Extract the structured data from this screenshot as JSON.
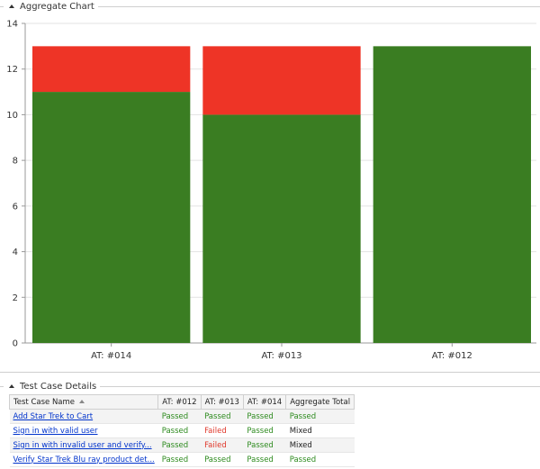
{
  "chart_section": {
    "title": "Aggregate Chart"
  },
  "chart_data": {
    "type": "bar",
    "stacked": true,
    "categories": [
      "AT: #014",
      "AT: #013",
      "AT: #012"
    ],
    "series": [
      {
        "name": "Passed",
        "values": [
          11,
          10,
          13
        ],
        "color": "#3a7d22"
      },
      {
        "name": "Failed",
        "values": [
          2,
          3,
          0
        ],
        "color": "#ee3426"
      }
    ],
    "ylim": [
      0,
      14
    ],
    "yticks": [
      0,
      2,
      4,
      6,
      8,
      10,
      12,
      14
    ],
    "grid": true,
    "legend": "none"
  },
  "details_section": {
    "title": "Test Case Details"
  },
  "table": {
    "columns": [
      "Test Case Name",
      "AT: #012",
      "AT: #013",
      "AT: #014",
      "Aggregate Total"
    ],
    "rows": [
      {
        "name": "Add Star Trek to Cart",
        "c012": "Passed",
        "c013": "Passed",
        "c014": "Passed",
        "total": "Passed"
      },
      {
        "name": "Sign in with valid user",
        "c012": "Passed",
        "c013": "Failed",
        "c014": "Passed",
        "total": "Mixed"
      },
      {
        "name": "Sign in with invalid user and verify...",
        "c012": "Passed",
        "c013": "Failed",
        "c014": "Passed",
        "total": "Mixed"
      },
      {
        "name": "Verify Star Trek Blu ray product det...",
        "c012": "Passed",
        "c013": "Passed",
        "c014": "Passed",
        "total": "Passed"
      }
    ]
  },
  "colors": {
    "passed": "#2e8b1f",
    "failed": "#e0382b",
    "link": "#0033cc"
  }
}
